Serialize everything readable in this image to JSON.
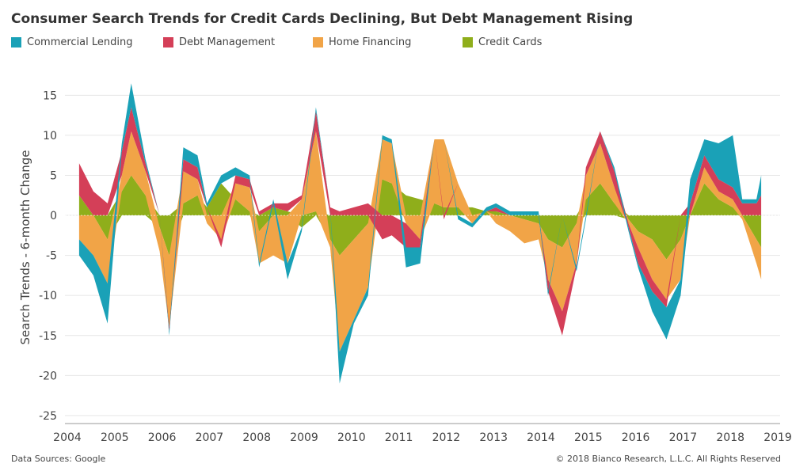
{
  "chart_data": {
    "type": "area",
    "title": "Consumer Search Trends for Credit Cards Declining, But Debt Management Rising",
    "ylabel": "Search Trends - 6-month Change",
    "xlabel": "",
    "ylim": [
      -26,
      18
    ],
    "xlim": [
      2004.0,
      2019.1
    ],
    "y_ticks": [
      15,
      10,
      5,
      0,
      -5,
      -10,
      -15,
      -20,
      -25
    ],
    "x_ticks": [
      "2004",
      "2005",
      "2006",
      "2007",
      "2008",
      "2009",
      "2010",
      "2011",
      "2012",
      "2013",
      "2014",
      "2015",
      "2016",
      "2017",
      "2018",
      "2019"
    ],
    "grid": "horizontal",
    "legend_position": "top",
    "stacked": true,
    "x": [
      2004.3,
      2004.6,
      2004.9,
      2005.2,
      2005.4,
      2005.7,
      2006.0,
      2006.2,
      2006.5,
      2006.8,
      2007.0,
      2007.3,
      2007.6,
      2007.9,
      2008.1,
      2008.4,
      2008.7,
      2009.0,
      2009.3,
      2009.6,
      2009.8,
      2010.1,
      2010.4,
      2010.7,
      2010.9,
      2011.2,
      2011.5,
      2011.8,
      2012.0,
      2012.3,
      2012.6,
      2012.9,
      2013.1,
      2013.4,
      2013.7,
      2014.0,
      2014.2,
      2014.5,
      2014.8,
      2015.0,
      2015.3,
      2015.6,
      2015.9,
      2016.1,
      2016.4,
      2016.7,
      2017.0,
      2017.2,
      2017.5,
      2017.8,
      2018.1,
      2018.3,
      2018.6,
      2018.7
    ],
    "series": [
      {
        "name": "Credit Cards",
        "color": "#8fae1b",
        "values": [
          2.5,
          0,
          -3,
          3,
          5,
          2.5,
          -1.5,
          -5,
          1.5,
          2.5,
          1,
          4,
          2,
          0.5,
          -2,
          1,
          0.5,
          -1.5,
          0.5,
          -3,
          -5,
          -3,
          -1,
          4.5,
          4,
          2.5,
          2,
          1.5,
          1,
          1,
          1,
          0.5,
          0.5,
          0,
          -0.5,
          -1,
          -3,
          -4,
          -1,
          2,
          4,
          1.5,
          -0.5,
          -2,
          -3,
          -5.5,
          -3,
          0,
          4,
          2,
          1,
          0,
          -3,
          -4
        ]
      },
      {
        "name": "Home Financing",
        "color": "#f1a447",
        "values": [
          -3,
          -5,
          -5.5,
          2,
          5.5,
          3,
          -3,
          -9,
          4,
          2,
          -1,
          -3,
          2,
          3,
          -4,
          -5,
          -6,
          2,
          10,
          -1,
          -12,
          -10,
          -8,
          5,
          5,
          -1,
          -3,
          8,
          8.5,
          3,
          -1,
          0,
          -1,
          -2,
          -3,
          -2,
          -5,
          -8,
          -5,
          3,
          5,
          2,
          -0.5,
          -2,
          -5,
          -5,
          -5,
          0,
          2,
          1,
          1,
          -0.5,
          -3,
          -4
        ]
      },
      {
        "name": "Debt Management",
        "color": "#d43f58",
        "values": [
          4,
          3,
          1.5,
          3,
          3,
          1,
          0,
          -0.5,
          1.5,
          1.5,
          0,
          -1,
          1,
          1,
          0.5,
          0.5,
          1,
          0.5,
          2.5,
          1,
          0.5,
          1,
          1.5,
          -3,
          -2.5,
          -3,
          -1,
          0,
          -0.5,
          0,
          0,
          0,
          0.5,
          0,
          0,
          0,
          -1.5,
          -3,
          -0.5,
          1,
          1.5,
          2,
          -0.5,
          -2,
          -1.5,
          -1,
          0,
          1.5,
          1.5,
          1.5,
          1.5,
          1.5,
          1.5,
          2.5
        ]
      },
      {
        "name": "Commercial Lending",
        "color": "#1aa1b7",
        "values": [
          -2,
          -2.5,
          -5,
          1,
          3,
          0.5,
          0,
          -0.5,
          1.5,
          1.5,
          0.5,
          1,
          1,
          0.5,
          -0.5,
          0.5,
          -2,
          -0.5,
          0.5,
          0,
          -4,
          -0.5,
          -1,
          0.5,
          0.5,
          -2.5,
          -2,
          0,
          0,
          -0.5,
          -0.5,
          0.5,
          0.5,
          0.5,
          0.5,
          0.5,
          -0.5,
          0,
          -0.5,
          -0.5,
          0,
          0.5,
          -0.5,
          -0.5,
          -2.5,
          -4,
          -2,
          3,
          2,
          4.5,
          6.5,
          0.5,
          0.5,
          2.5
        ]
      }
    ]
  },
  "footer": {
    "source": "Data Sources: Google",
    "copyright": "© 2018 Bianco Research, L.L.C. All Rights Reserved"
  }
}
